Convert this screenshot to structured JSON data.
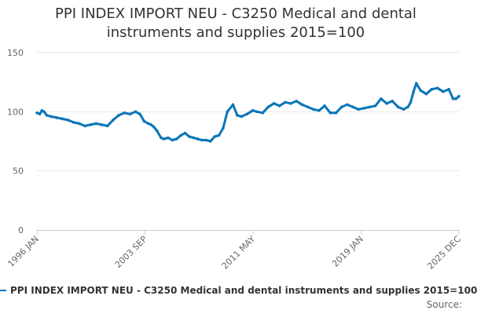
{
  "chart_data": {
    "type": "line",
    "title_lines": [
      "PPI INDEX IMPORT NEU - C3250 Medical and dental",
      "instruments and supplies 2015=100"
    ],
    "xlabel": "",
    "ylabel": "",
    "ylim": [
      0,
      150
    ],
    "yticks": [
      0,
      50,
      100,
      150
    ],
    "xlim": [
      1996.0,
      2025.92
    ],
    "xtick_values": [
      1996.0,
      2003.67,
      2011.33,
      2019.0,
      2025.92
    ],
    "xtick_labels": [
      "1996 JAN",
      "2003 SEP",
      "2011 MAY",
      "2019 JAN",
      "2025 DEC"
    ],
    "grid": true,
    "series": [
      {
        "name": "PPI INDEX IMPORT NEU - C3250 Medical and dental instruments and supplies 2015=100",
        "color": "#0a76b8",
        "x": [
          1996.0,
          1996.2,
          1996.35,
          1996.5,
          1996.7,
          1997.0,
          1997.4,
          1997.8,
          1998.2,
          1998.6,
          1999.0,
          1999.4,
          1999.8,
          2000.2,
          2000.6,
          2001.0,
          2001.4,
          2001.8,
          2002.2,
          2002.6,
          2003.0,
          2003.3,
          2003.6,
          2003.9,
          2004.1,
          2004.3,
          2004.5,
          2004.8,
          2005.0,
          2005.3,
          2005.6,
          2005.9,
          2006.2,
          2006.5,
          2006.8,
          2007.1,
          2007.4,
          2007.7,
          2008.0,
          2008.3,
          2008.6,
          2008.9,
          2009.2,
          2009.5,
          2009.9,
          2010.2,
          2010.5,
          2010.9,
          2011.3,
          2011.6,
          2012.0,
          2012.4,
          2012.8,
          2013.2,
          2013.6,
          2014.0,
          2014.4,
          2014.8,
          2015.2,
          2015.6,
          2016.0,
          2016.4,
          2016.8,
          2017.2,
          2017.6,
          2018.0,
          2018.4,
          2018.8,
          2019.2,
          2019.6,
          2020.0,
          2020.4,
          2020.8,
          2021.2,
          2021.6,
          2022.0,
          2022.3,
          2022.5,
          2022.7,
          2022.9,
          2023.2,
          2023.6,
          2024.0,
          2024.4,
          2024.8,
          2025.2,
          2025.5,
          2025.7,
          2025.92
        ],
        "values": [
          99,
          98,
          101,
          100,
          97,
          96,
          95,
          94,
          93,
          91,
          90,
          88,
          89,
          90,
          89,
          88,
          93,
          97,
          99,
          98,
          100,
          98,
          92,
          90,
          89,
          87,
          84,
          78,
          77,
          78,
          76,
          77,
          80,
          82,
          79,
          78,
          77,
          76,
          76,
          75,
          79,
          80,
          86,
          100,
          106,
          97,
          96,
          98,
          101,
          100,
          99,
          104,
          107,
          105,
          108,
          107,
          109,
          106,
          104,
          102,
          101,
          105,
          99,
          99,
          104,
          106,
          104,
          102,
          103,
          104,
          105,
          111,
          107,
          109,
          104,
          102,
          104,
          108,
          117,
          124,
          118,
          115,
          119,
          120,
          117,
          119,
          111,
          111,
          113
        ]
      }
    ]
  },
  "legend": {
    "label": "PPI INDEX IMPORT NEU - C3250 Medical and dental instruments and supplies 2015=100"
  },
  "source": {
    "label": "Source:"
  }
}
